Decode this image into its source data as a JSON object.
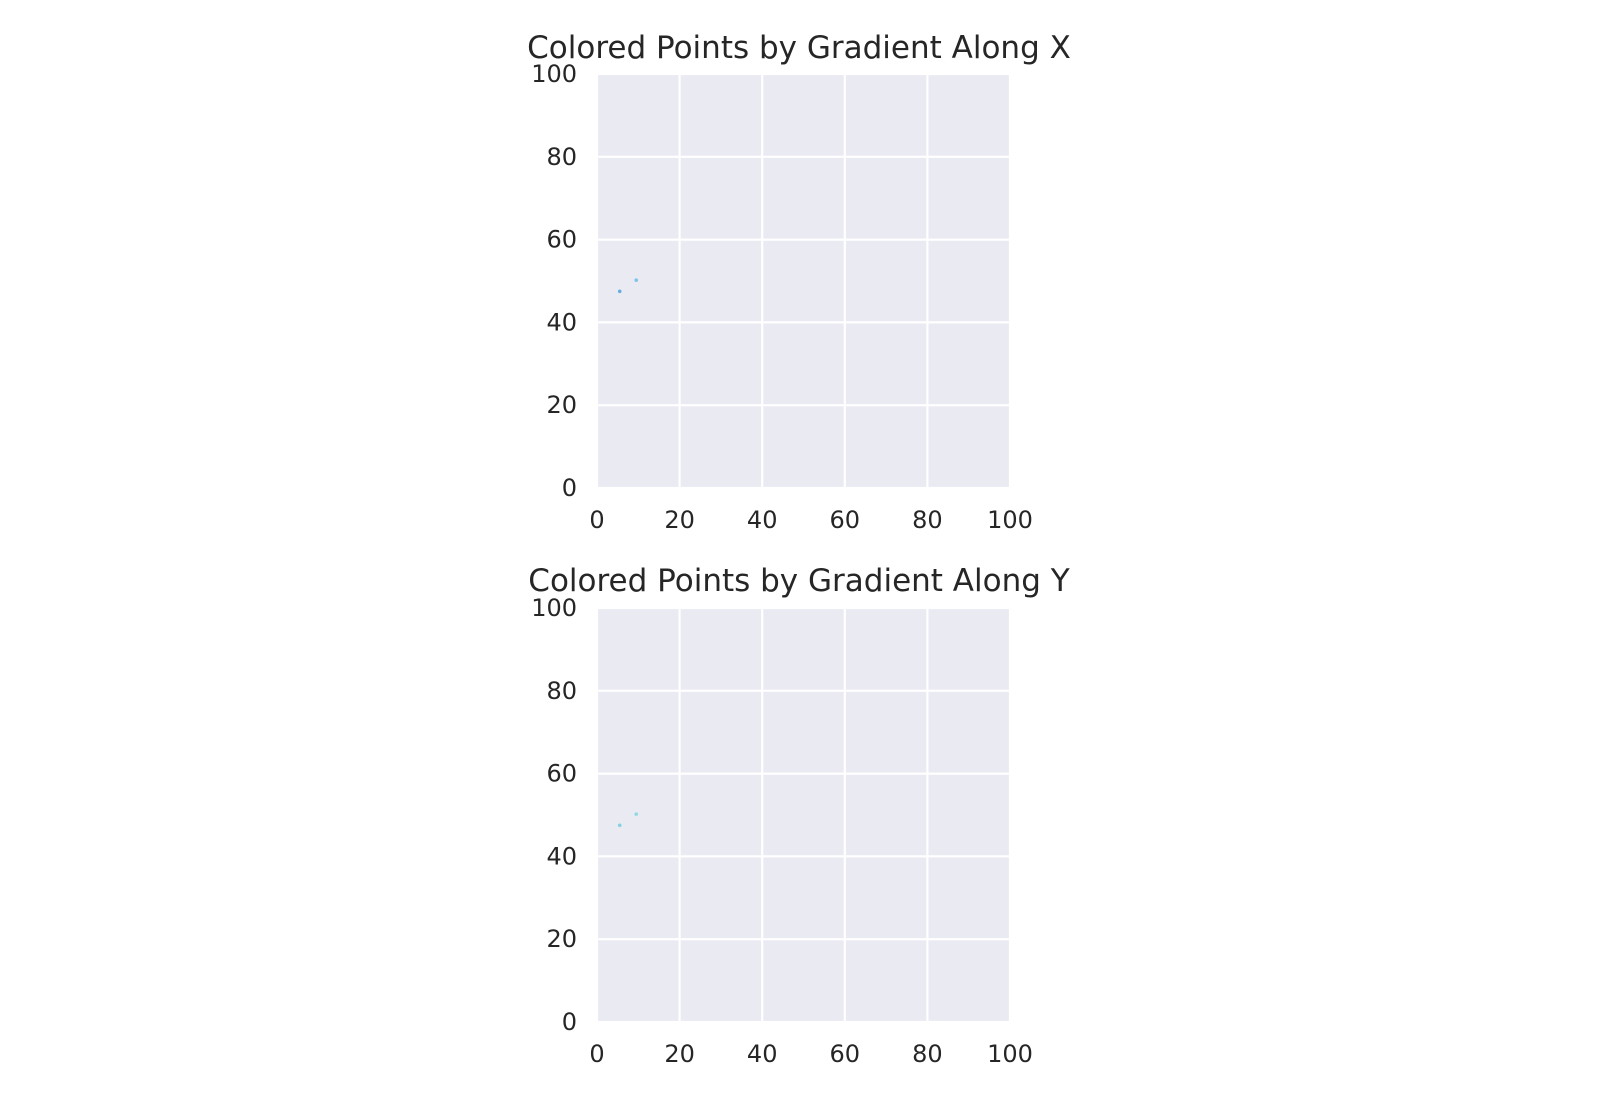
{
  "chart_data": [
    {
      "type": "scatter",
      "title": "Colored Points by Gradient Along X",
      "xlabel": "",
      "ylabel": "",
      "xlim": [
        0,
        100
      ],
      "ylim": [
        0,
        100
      ],
      "xticks": [
        "0",
        "20",
        "40",
        "60",
        "80",
        "100"
      ],
      "yticks": [
        "0",
        "20",
        "40",
        "60",
        "80",
        "100"
      ],
      "grid": true,
      "background": "#eaeaf2",
      "grid_color": "#ffffff",
      "points": [
        {
          "x": 5.5,
          "y": 47.5,
          "color": "#6aaee0"
        },
        {
          "x": 9.5,
          "y": 50.2,
          "color": "#7cc3e8"
        }
      ]
    },
    {
      "type": "scatter",
      "title": "Colored Points by Gradient Along Y",
      "xlabel": "",
      "ylabel": "",
      "xlim": [
        0,
        100
      ],
      "ylim": [
        0,
        100
      ],
      "xticks": [
        "0",
        "20",
        "40",
        "60",
        "80",
        "100"
      ],
      "yticks": [
        "0",
        "20",
        "40",
        "60",
        "80",
        "100"
      ],
      "grid": true,
      "background": "#eaeaf2",
      "grid_color": "#ffffff",
      "points": [
        {
          "x": 5.5,
          "y": 47.5,
          "color": "#86d2e0"
        },
        {
          "x": 9.5,
          "y": 50.2,
          "color": "#8fd8e4"
        }
      ]
    }
  ]
}
